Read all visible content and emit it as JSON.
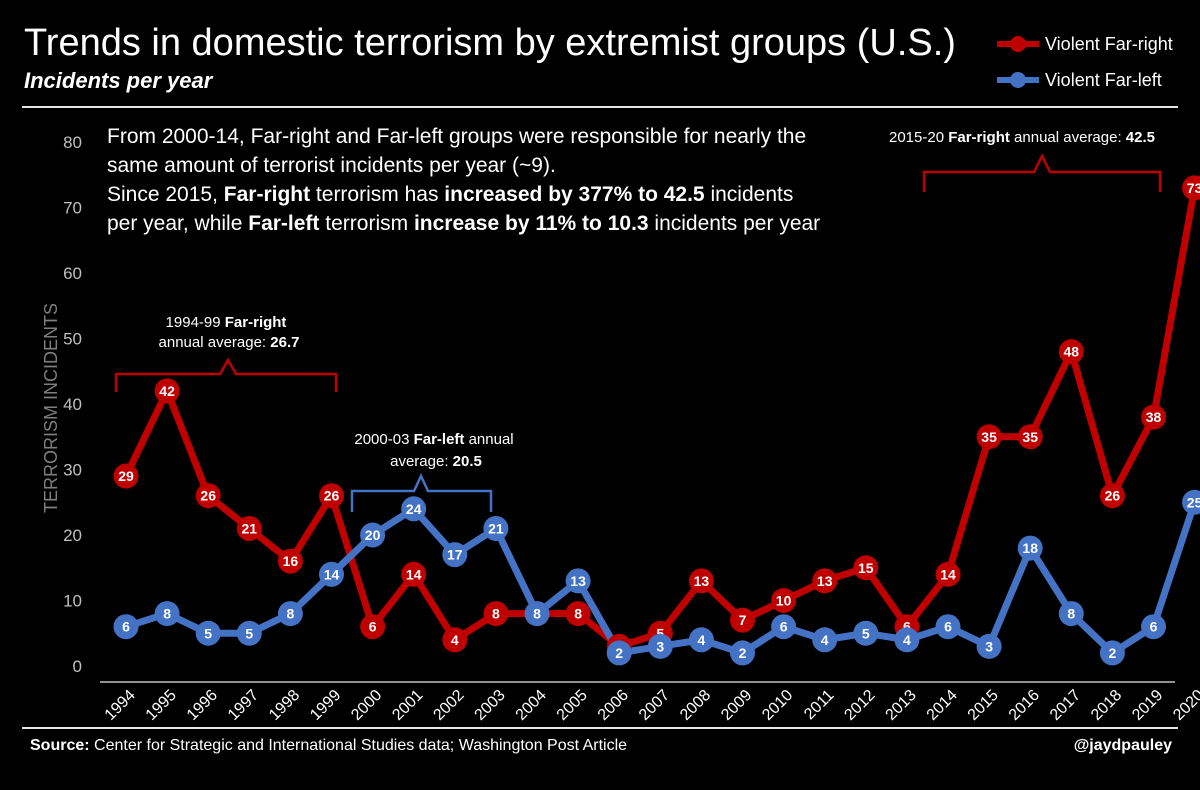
{
  "header": {
    "title": "Trends in domestic terrorism by extremist groups (U.S.)",
    "subtitle": "Incidents per year"
  },
  "legend": [
    {
      "label": "Violent Far-right",
      "color": "#c00000"
    },
    {
      "label": "Violent Far-left",
      "color": "#4472c4"
    }
  ],
  "note": {
    "line1": "From 2000-14, Far-right and Far-left groups were responsible for nearly the same amount of terrorist incidents per year (~9).",
    "line2_a": "Since 2015, ",
    "line2_b": "Far-right",
    "line2_c": " terrorism has ",
    "line2_d": "increased by 377% to 42.5",
    "line2_e": " incidents per year, while ",
    "line2_f": "Far-left",
    "line2_g": " terrorism ",
    "line2_h": "increase by 11% to 10.3",
    "line2_i": " incidents per year"
  },
  "annotations": {
    "a1_l1_pre": "1994-99 ",
    "a1_l1_bold": "Far-right",
    "a1_l2_pre": "annual average: ",
    "a1_l2_bold": "26.7",
    "a2_l1_pre": "2000-03 ",
    "a2_l1_bold": "Far-left",
    "a2_l1_post": " annual",
    "a2_l2_pre": "average: ",
    "a2_l2_bold": "20.5",
    "a3_pre": "2015-20 ",
    "a3_bold": "Far-right",
    "a3_mid": " annual average: ",
    "a3_val": "42.5"
  },
  "footer": {
    "source_label": "Source:",
    "source_text": " Center for Strategic and International Studies data; Washington Post Article",
    "credit": "@jaydpauley"
  },
  "colors": {
    "far_right": "#c00000",
    "far_left": "#4472c4",
    "axis": "#bfbfbf",
    "background": "#000000"
  },
  "chart_data": {
    "type": "line",
    "x": [
      "1994",
      "1995",
      "1996",
      "1997",
      "1998",
      "1999",
      "2000",
      "2001",
      "2002",
      "2003",
      "2004",
      "2005",
      "2006",
      "2007",
      "2008",
      "2009",
      "2010",
      "2011",
      "2012",
      "2013",
      "2014",
      "2015",
      "2016",
      "2017",
      "2018",
      "2019",
      "2020"
    ],
    "series": [
      {
        "name": "Violent Far-right",
        "color": "#c00000",
        "values": [
          29,
          42,
          26,
          21,
          16,
          26,
          6,
          14,
          4,
          8,
          8,
          8,
          3,
          5,
          13,
          7,
          10,
          13,
          15,
          6,
          14,
          35,
          35,
          48,
          26,
          38,
          73
        ]
      },
      {
        "name": "Violent Far-left",
        "color": "#4472c4",
        "values": [
          6,
          8,
          5,
          5,
          8,
          14,
          20,
          24,
          17,
          21,
          8,
          13,
          2,
          3,
          4,
          2,
          6,
          4,
          5,
          4,
          6,
          3,
          18,
          8,
          2,
          6,
          25
        ]
      }
    ],
    "ylabel": "TERRORISM INCIDENTS",
    "ylim": [
      0,
      80
    ],
    "yticks": [
      0,
      10,
      20,
      30,
      40,
      50,
      60,
      70,
      80
    ],
    "grid": false,
    "legend_position": "top-right",
    "title": "Trends in domestic terrorism by extremist groups (U.S.)",
    "subtitle": "Incidents per year"
  }
}
